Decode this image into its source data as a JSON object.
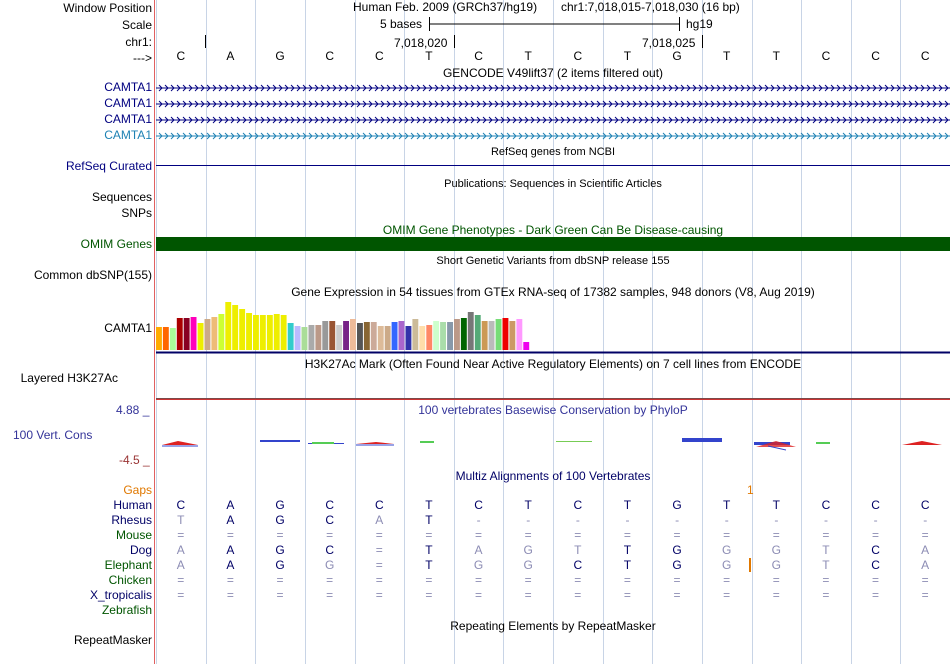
{
  "header": {
    "window_position_label": "Window Position",
    "scale_label": "Scale",
    "chrom_label": "chr1:",
    "strand_label": "--->",
    "assembly_text": "Human Feb. 2009 (GRCh37/hg19)",
    "position_text": "chr1:7,018,015-7,018,030 (16 bp)",
    "scale_text": "5 bases",
    "db_text": "hg19",
    "coord_left": "7,018,020",
    "coord_right": "7,018,025"
  },
  "bases": [
    "C",
    "A",
    "G",
    "C",
    "C",
    "T",
    "C",
    "T",
    "C",
    "T",
    "G",
    "T",
    "T",
    "C",
    "C",
    "C"
  ],
  "tracks": {
    "gencode": {
      "title": "GENCODE V49lift37 (2 items filtered out)",
      "items": [
        "CAMTA1",
        "CAMTA1",
        "CAMTA1",
        "CAMTA1"
      ]
    },
    "refseq": {
      "label": "RefSeq Curated",
      "title": "RefSeq genes from NCBI"
    },
    "publications": {
      "label1": "Sequences",
      "label2": "SNPs",
      "title": "Publications: Sequences in Scientific Articles"
    },
    "omim": {
      "label": "OMIM Genes",
      "title": "OMIM Gene Phenotypes - Dark Green Can Be Disease-causing",
      "bar_color": "#005500"
    },
    "dbsnp": {
      "label": "Common dbSNP(155)",
      "title": "Short Genetic Variants from dbSNP release 155"
    },
    "gtex": {
      "label": "CAMTA1",
      "title": "Gene Expression in 54 tissues from GTEx RNA-seq of 17382 samples, 948 donors (V8, Aug 2019)",
      "values": [
        0.44,
        0.44,
        0.42,
        0.62,
        0.62,
        0.64,
        0.51,
        0.6,
        0.64,
        0.69,
        0.93,
        0.87,
        0.78,
        0.71,
        0.67,
        0.67,
        0.67,
        0.69,
        0.67,
        0.51,
        0.47,
        0.44,
        0.49,
        0.49,
        0.56,
        0.56,
        0.49,
        0.56,
        0.6,
        0.51,
        0.53,
        0.53,
        0.47,
        0.47,
        0.53,
        0.56,
        0.47,
        0.6,
        0.47,
        0.49,
        0.56,
        0.53,
        0.53,
        0.6,
        0.62,
        0.73,
        0.67,
        0.56,
        0.56,
        0.6,
        0.62,
        0.56,
        0.6,
        0.16
      ],
      "colors": [
        "#FFAA00",
        "#FF6600",
        "#AAFF99",
        "#AA0000",
        "#880022",
        "#FF00BB",
        "#EEEE00",
        "#CCAA88",
        "#EEBB77",
        "#CCFF33",
        "#EEEE00",
        "#EEEE00",
        "#EEEE00",
        "#EEEE00",
        "#EEEE00",
        "#EEEE00",
        "#EEEE00",
        "#EEEE00",
        "#EEEE00",
        "#33CCCC",
        "#BBBBFF",
        "#AADD99",
        "#AAAAAA",
        "#BB9988",
        "#999999",
        "#995533",
        "#CCCCCC",
        "#772288",
        "#EEBB99",
        "#555555",
        "#886633",
        "#CCAA99",
        "#DDBB99",
        "#CCAA88",
        "#3366FF",
        "#AA66CC",
        "#3333AA",
        "#CCBB99",
        "#FFDDAA",
        "#FF8866",
        "#CCFFCC",
        "#AADDAA",
        "#8899AA",
        "#BB9988",
        "#006600",
        "#777777",
        "#55AA77",
        "#CC9955",
        "#BBBBBB",
        "#77DD77",
        "#EE0000",
        "#CC9966",
        "#FF99FF",
        "#EE00EE"
      ]
    },
    "h3k27ac": {
      "label": "Layered H3K27Ac",
      "title": "H3K27Ac Mark (Often Found Near Active Regulatory Elements) on 7 cell lines from ENCODE"
    },
    "cons": {
      "label": "100 Vert. Cons",
      "title": "100 vertebrates Basewise Conservation by PhyloP",
      "max_label": "4.88 _",
      "min_label": "-4.5 _"
    },
    "multiz": {
      "title": "Multiz Alignments of 100 Vertebrates",
      "gaps_label": "Gaps",
      "gap_value": "1",
      "rows": [
        {
          "species": "Human",
          "cells": [
            "C",
            "A",
            "G",
            "C",
            "C",
            "T",
            "C",
            "T",
            "C",
            "T",
            "G",
            "T",
            "T",
            "C",
            "C",
            "C"
          ]
        },
        {
          "species": "Rhesus",
          "cells": [
            "T",
            "A",
            "G",
            "C",
            "A",
            "T",
            "-",
            "-",
            "-",
            "-",
            "-",
            "-",
            "-",
            "-",
            "-",
            "-"
          ]
        },
        {
          "species": "Mouse",
          "cells": [
            "=",
            "=",
            "=",
            "=",
            "=",
            "=",
            "=",
            "=",
            "=",
            "=",
            "=",
            "=",
            "=",
            "=",
            "=",
            "="
          ]
        },
        {
          "species": "Dog",
          "cells": [
            "A",
            "A",
            "G",
            "C",
            "=",
            "T",
            "A",
            "G",
            "T",
            "T",
            "G",
            "G",
            "G",
            "T",
            "C",
            "A"
          ]
        },
        {
          "species": "Elephant",
          "cells": [
            "A",
            "A",
            "G",
            "G",
            "=",
            "T",
            "G",
            "G",
            "C",
            "T",
            "G",
            "G",
            "G",
            "T",
            "C",
            "A"
          ]
        },
        {
          "species": "Chicken",
          "cells": [
            "=",
            "=",
            "=",
            "=",
            "=",
            "=",
            "=",
            "=",
            "=",
            "=",
            "=",
            "=",
            "=",
            "=",
            "=",
            "="
          ]
        },
        {
          "species": "X_tropicalis",
          "cells": [
            "=",
            "=",
            "=",
            "=",
            "=",
            "=",
            "=",
            "=",
            "=",
            "=",
            "=",
            "=",
            "=",
            "=",
            "=",
            "="
          ]
        },
        {
          "species": "Zebrafish",
          "cells": [
            "",
            "",
            "",
            "",
            "",
            "",
            "",
            "",
            "",
            "",
            "",
            "",
            "",
            "",
            "",
            ""
          ]
        }
      ]
    },
    "rmsk": {
      "label": "RepeatMasker",
      "title": "Repeating Elements by RepeatMasker"
    }
  },
  "colors": {
    "gene_blue": "#000080",
    "gencode_light": "#1E82B4",
    "omim_green": "#005500",
    "cons_title": "#333399",
    "gaps_orange": "#E07800"
  }
}
